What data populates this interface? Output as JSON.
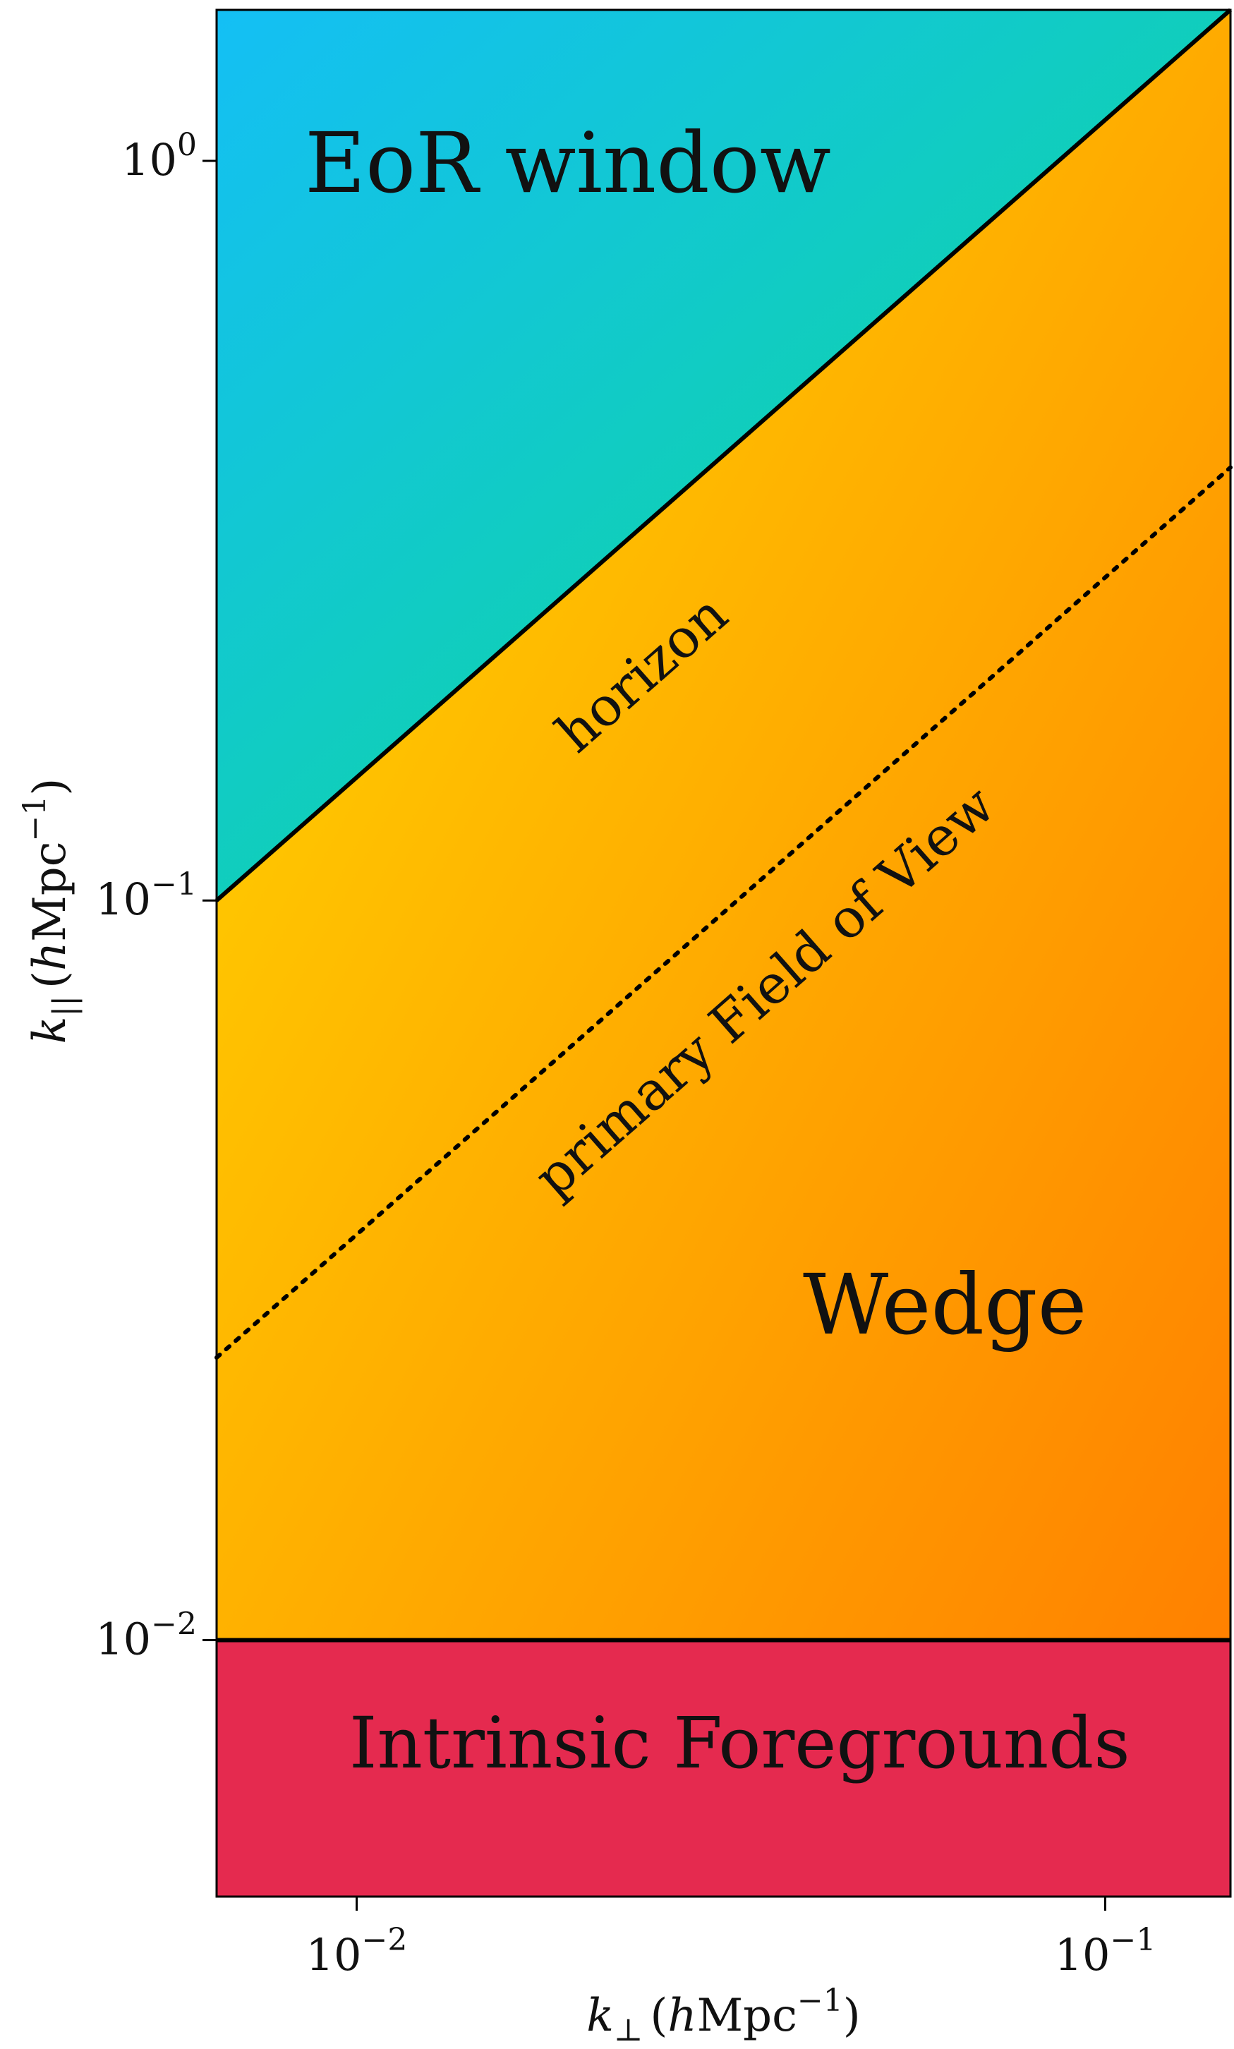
{
  "chart_data": {
    "type": "diagram",
    "x_scale": "log",
    "y_scale": "log",
    "xlim": [
      0.0065,
      0.147
    ],
    "ylim": [
      0.0045,
      1.6
    ],
    "x_ticks": [
      {
        "value": 0.01,
        "base": "10",
        "exponent": "−2"
      },
      {
        "value": 0.1,
        "base": "10",
        "exponent": "−1"
      }
    ],
    "y_ticks": [
      {
        "value": 0.01,
        "base": "10",
        "exponent": "−2"
      },
      {
        "value": 0.1,
        "base": "10",
        "exponent": "−1"
      },
      {
        "value": 1,
        "base": "10",
        "exponent": "0"
      }
    ],
    "xlabel": {
      "symbol": "k",
      "sub": "⊥",
      "unit_prefix": "(",
      "unit_h": "h",
      "unit_main": "Mpc",
      "unit_exp": "−1",
      "unit_suffix": ")"
    },
    "ylabel": {
      "symbol": "k",
      "sub": "||",
      "unit_prefix": "(",
      "unit_h": "h",
      "unit_main": "Mpc",
      "unit_exp": "−1",
      "unit_suffix": ")"
    },
    "lines": {
      "horizon": {
        "label": "horizon",
        "style": "solid",
        "points": [
          [
            0.0065,
            0.1
          ],
          [
            0.147,
            1.6
          ]
        ]
      },
      "fov": {
        "label": "primary Field of View",
        "style": "dotted",
        "points": [
          [
            0.0065,
            0.0241
          ],
          [
            0.147,
            0.385
          ]
        ]
      },
      "intrinsic_boundary": {
        "style": "solid",
        "y": 0.01
      }
    },
    "regions": {
      "eor_window": {
        "label": "EoR window",
        "colors": [
          "#14bff5",
          "#0ddc84"
        ]
      },
      "wedge": {
        "label": "Wedge",
        "colors": [
          "#ffd200",
          "#ff7a00"
        ]
      },
      "intrinsic_foregrounds": {
        "label": "Intrinsic Foregrounds",
        "color": "#e52a4f"
      }
    }
  }
}
